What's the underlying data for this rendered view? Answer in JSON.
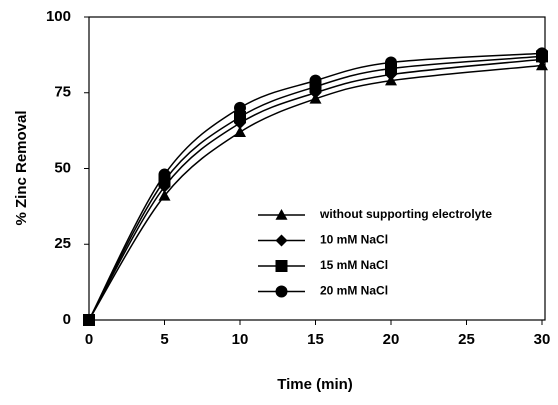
{
  "chart_data": {
    "type": "line",
    "x_label": "Time (min)",
    "y_label": "% Zinc Removal",
    "x": [
      0,
      5,
      10,
      15,
      20,
      30
    ],
    "series": [
      {
        "name": "without supporting electrolyte",
        "color": "#000000",
        "marker": "triangle",
        "values": [
          0,
          41,
          62,
          73,
          79,
          84
        ]
      },
      {
        "name": "10 mM NaCl",
        "color": "#000000",
        "marker": "diamond",
        "values": [
          0,
          44,
          65,
          75,
          81,
          86
        ]
      },
      {
        "name": "15 mM NaCl",
        "color": "#000000",
        "marker": "square",
        "values": [
          0,
          46,
          67,
          77,
          83,
          87
        ]
      },
      {
        "name": "20 mM NaCl",
        "color": "#000000",
        "marker": "circle",
        "values": [
          0,
          48,
          70,
          79,
          85,
          88
        ]
      }
    ],
    "xlim": [
      0,
      30
    ],
    "xticks": [
      0,
      5,
      10,
      15,
      20,
      25,
      30
    ],
    "ylim": [
      0,
      100
    ],
    "yticks": [
      0,
      25,
      50,
      75,
      100
    ],
    "grid": false,
    "legend": "lower right"
  }
}
